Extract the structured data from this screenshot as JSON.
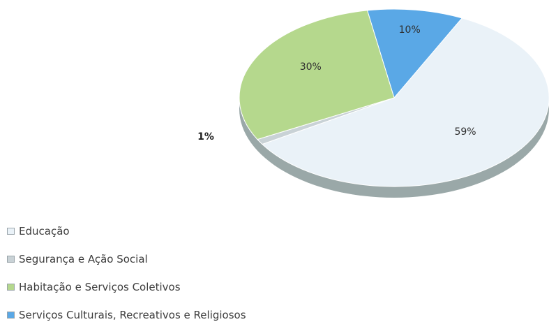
{
  "chart_data": {
    "type": "pie",
    "title": "",
    "categories": [
      "Educação",
      "Segurança e Ação Social",
      "Habitação e Serviços Coletivos",
      "Serviços Culturais, Recreativos e Religiosos"
    ],
    "values": [
      59,
      1,
      30,
      10
    ],
    "data_labels": [
      "59%",
      "1%",
      "30%",
      "10%"
    ],
    "colors": [
      "#eaf2f8",
      "#c9d2d6",
      "#b5d88d",
      "#5aa8e6"
    ],
    "legend_position": "bottom-left"
  }
}
